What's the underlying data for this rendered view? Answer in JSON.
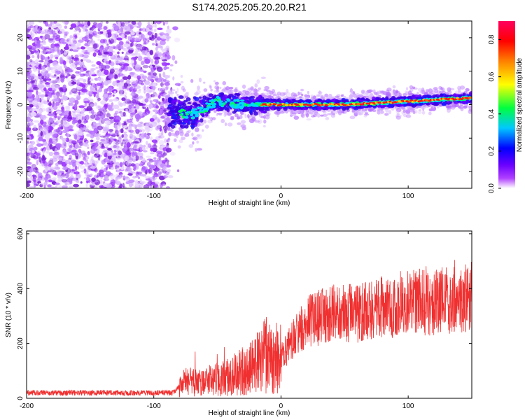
{
  "title": "S174.2025.205.20.20.R21",
  "chart_data": [
    {
      "type": "heatmap",
      "xlabel": "Height of straight line (km)",
      "ylabel": "Frequency (Hz)",
      "xlim": [
        -200,
        150
      ],
      "ylim": [
        -25,
        25
      ],
      "x_ticks": [
        "-200",
        "-100",
        "0",
        "100"
      ],
      "y_ticks": [
        "-20",
        "-10",
        "0",
        "10",
        "20"
      ],
      "colorbar": {
        "label": "Normalized spectral amplitude",
        "ticks": [
          "0.0",
          "0.2",
          "0.4",
          "0.6",
          "0.8"
        ],
        "range": [
          0,
          0.9
        ],
        "colors": [
          "#ffffff",
          "#9b00ff",
          "#0000ff",
          "#00ffff",
          "#00ff00",
          "#ffff00",
          "#ff8000",
          "#ff0000",
          "#ff0066"
        ]
      },
      "ridge": [
        {
          "x": -85,
          "y": -2
        },
        {
          "x": -70,
          "y": -3
        },
        {
          "x": -50,
          "y": 1
        },
        {
          "x": -30,
          "y": 0
        },
        {
          "x": -15,
          "y": 0
        },
        {
          "x": 0,
          "y": 0
        },
        {
          "x": 50,
          "y": 0
        },
        {
          "x": 100,
          "y": 1
        },
        {
          "x": 150,
          "y": 2
        }
      ]
    },
    {
      "type": "line",
      "xlabel": "Height of straight line (km)",
      "ylabel": "SNR (10 * v/v)",
      "xlim": [
        -200,
        150
      ],
      "ylim": [
        0,
        610
      ],
      "x_ticks": [
        "-200",
        "-100",
        "0",
        "100"
      ],
      "y_ticks": [
        "0",
        "200",
        "400",
        "600"
      ],
      "series": [
        {
          "color": "#f03030",
          "x": [
            -200,
            -150,
            -100,
            -85,
            -75,
            -60,
            -40,
            -20,
            -12,
            -5,
            0,
            20,
            40,
            60,
            80,
            100,
            120,
            150
          ],
          "y": [
            20,
            20,
            20,
            20,
            60,
            60,
            80,
            120,
            160,
            120,
            150,
            280,
            310,
            310,
            330,
            350,
            350,
            370
          ]
        }
      ]
    }
  ]
}
